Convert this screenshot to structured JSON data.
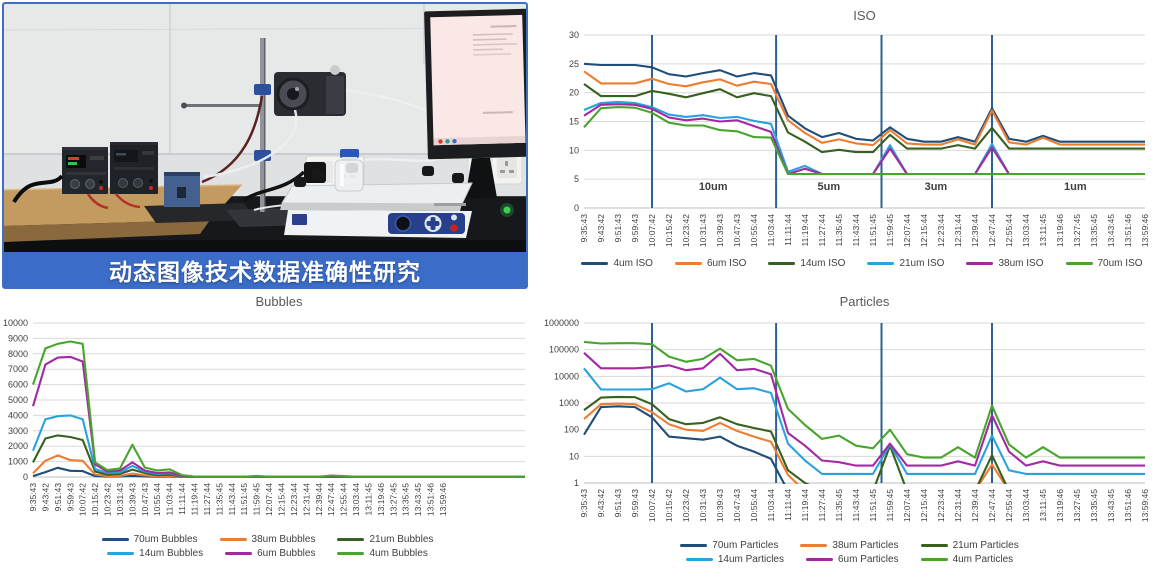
{
  "photo": {
    "caption": "动态图像技术数据准确性研究",
    "banner_color": "#3a6cc8",
    "scene_objects": [
      "wall-panels",
      "wooden-table",
      "power-supply-left",
      "power-supply-right",
      "retort-stand",
      "peristaltic-pump",
      "flow-cell-box",
      "tubing",
      "power-outlet-left",
      "power-outlet-right",
      "glass-bottle",
      "analyzer-shaker",
      "shaker-keypad",
      "monitor",
      "lab-bench",
      "status-led"
    ]
  },
  "colors": {
    "divider": "#2e6191",
    "grid": "#d9d9d9",
    "axis": "#bfbfbf",
    "tick_text": "#404040",
    "title_text": "#595959"
  },
  "chart_data": {
    "x_labels": [
      "9:35:43",
      "9:43:42",
      "9:51:43",
      "9:59:43",
      "10:07:42",
      "10:15:42",
      "10:23:42",
      "10:31:43",
      "10:39:43",
      "10:47:43",
      "10:55:44",
      "11:03:44",
      "11:11:44",
      "11:19:44",
      "11:27:44",
      "11:35:45",
      "11:43:44",
      "11:51:45",
      "11:59:45",
      "12:07:44",
      "12:15:44",
      "12:23:44",
      "12:31:44",
      "12:39:44",
      "12:47:44",
      "12:55:44",
      "13:03:44",
      "13:11:45",
      "13:19:46",
      "13:27:45",
      "13:35:45",
      "13:43:45",
      "13:51:46",
      "13:59:46"
    ],
    "charts": [
      {
        "id": "iso",
        "type": "line",
        "title": "ISO",
        "y_scale": "linear",
        "ylim": [
          0,
          30
        ],
        "yticks": [
          0,
          5,
          10,
          15,
          20,
          25,
          30
        ],
        "grid": true,
        "legend_position": "bottom",
        "dividers_at_x": [
          4,
          11.3,
          17.5,
          24
        ],
        "region_labels": [
          {
            "text": "10um",
            "x": 7.6
          },
          {
            "text": "5um",
            "x": 14.4
          },
          {
            "text": "3um",
            "x": 20.7
          },
          {
            "text": "1um",
            "x": 28.9
          }
        ],
        "legend_rows": [
          [
            "4um ISO",
            "6um ISO",
            "14um ISO",
            "21um ISO",
            "38um ISO",
            "70um ISO"
          ]
        ],
        "series": [
          {
            "name": "4um ISO",
            "color": "#1f4e79",
            "values": [
              25,
              24.8,
              24.8,
              24.8,
              24.4,
              23.2,
              22.8,
              23.4,
              23.9,
              22.8,
              23.4,
              23,
              16,
              13.8,
              12.3,
              13,
              12,
              11.7,
              14,
              12,
              11.5,
              11.5,
              12.3,
              11.5,
              17.3,
              12,
              11.5,
              12.5,
              11.5,
              11.5,
              11.5,
              11.5,
              11.5,
              11.5
            ]
          },
          {
            "name": "6um ISO",
            "color": "#ed7d31",
            "values": [
              23.7,
              21.6,
              21.6,
              21.6,
              22.4,
              21.5,
              21.1,
              21.8,
              22.3,
              21.2,
              21.9,
              21.5,
              15.2,
              13,
              11.3,
              11.9,
              11.2,
              10.9,
              13.5,
              11.2,
              11,
              11,
              11.9,
              11,
              16.9,
              11.4,
              11,
              12.2,
              11,
              11,
              11,
              11,
              11,
              11
            ]
          },
          {
            "name": "14um ISO",
            "color": "#38601f",
            "values": [
              21.5,
              19.4,
              19.4,
              19.4,
              20.3,
              19.8,
              19.2,
              19.9,
              20.6,
              19.2,
              19.9,
              19.4,
              13.1,
              11.5,
              9.7,
              10.1,
              9.7,
              9.7,
              12.7,
              10.3,
              10.3,
              10.3,
              10.9,
              10.3,
              13.9,
              10.3,
              10.3,
              10.3,
              10.3,
              10.3,
              10.3,
              10.3,
              10.3,
              10.3
            ]
          },
          {
            "name": "21um ISO",
            "color": "#29a3dd",
            "values": [
              17,
              18.2,
              18.4,
              18.2,
              17.5,
              16.2,
              15.8,
              16.1,
              15.6,
              15.8,
              15.1,
              14.6,
              6.3,
              7.3,
              5.9,
              5.9,
              5.9,
              5.9,
              10.9,
              5.9,
              5.9,
              5.9,
              5.9,
              5.9,
              11.1,
              5.9,
              5.9,
              5.9,
              5.9,
              5.9,
              5.9,
              5.9,
              5.9,
              5.9
            ]
          },
          {
            "name": "38um ISO",
            "color": "#a428a4",
            "values": [
              16,
              17.9,
              18,
              17.9,
              17.2,
              15.7,
              15.2,
              15.5,
              15,
              15.2,
              14.2,
              13.2,
              5.9,
              6.8,
              5.9,
              5.9,
              5.9,
              5.9,
              10.3,
              5.9,
              5.9,
              5.9,
              5.9,
              5.9,
              10.5,
              5.9,
              5.9,
              5.9,
              5.9,
              5.9,
              5.9,
              5.9,
              5.9,
              5.9
            ]
          },
          {
            "name": "70um ISO",
            "color": "#48a52c",
            "values": [
              14,
              17.3,
              17.5,
              17.4,
              16.5,
              14.8,
              14.3,
              14.3,
              13.5,
              13.3,
              12.3,
              12.2,
              5.9,
              5.9,
              5.9,
              5.9,
              5.9,
              5.9,
              5.9,
              5.9,
              5.9,
              5.9,
              5.9,
              5.9,
              5.9,
              5.9,
              5.9,
              5.9,
              5.9,
              5.9,
              5.9,
              5.9,
              5.9,
              5.9
            ]
          }
        ]
      },
      {
        "id": "bubbles",
        "type": "line",
        "title": "Bubbles",
        "y_scale": "linear",
        "ylim": [
          0,
          10000
        ],
        "yticks": [
          0,
          1000,
          2000,
          3000,
          4000,
          5000,
          6000,
          7000,
          8000,
          9000,
          10000
        ],
        "grid": true,
        "legend_position": "bottom",
        "dividers_at_x": [],
        "region_labels": [],
        "legend_rows": [
          [
            "70um Bubbles",
            "38um Bubbles",
            "21um Bubbles"
          ],
          [
            "14um Bubbles",
            "6um Bubbles",
            "4um Bubbles"
          ]
        ],
        "series": [
          {
            "name": "70um Bubbles",
            "color": "#1f4e79",
            "values": [
              60,
              320,
              600,
              400,
              380,
              60,
              25,
              30,
              70,
              35,
              18,
              20,
              5,
              2,
              0,
              0,
              0,
              0,
              3,
              0,
              0,
              0,
              0,
              0,
              4,
              2,
              0,
              0,
              0,
              0,
              0,
              0,
              0,
              0
            ]
          },
          {
            "name": "38um Bubbles",
            "color": "#ed7d31",
            "values": [
              250,
              1050,
              1400,
              1100,
              1050,
              160,
              60,
              80,
              220,
              110,
              55,
              60,
              15,
              5,
              2,
              2,
              2,
              2,
              8,
              2,
              2,
              2,
              2,
              2,
              10,
              5,
              2,
              2,
              2,
              2,
              2,
              2,
              2,
              2
            ]
          },
          {
            "name": "21um Bubbles",
            "color": "#38601f",
            "values": [
              950,
              2500,
              2700,
              2600,
              2400,
              360,
              150,
              200,
              480,
              260,
              120,
              150,
              35,
              10,
              5,
              5,
              5,
              5,
              15,
              5,
              5,
              5,
              5,
              5,
              18,
              8,
              5,
              5,
              5,
              5,
              5,
              5,
              5,
              5
            ]
          },
          {
            "name": "14um Bubbles",
            "color": "#29a3dd",
            "values": [
              1700,
              3750,
              3950,
              4000,
              3750,
              520,
              260,
              300,
              720,
              360,
              200,
              250,
              55,
              15,
              8,
              8,
              8,
              8,
              25,
              8,
              8,
              8,
              8,
              8,
              30,
              12,
              8,
              8,
              8,
              8,
              8,
              8,
              8,
              8
            ]
          },
          {
            "name": "6um Bubbles",
            "color": "#a428a4",
            "values": [
              4600,
              7300,
              7750,
              7800,
              7500,
              820,
              350,
              420,
              950,
              420,
              260,
              300,
              70,
              18,
              10,
              10,
              10,
              10,
              30,
              10,
              10,
              10,
              10,
              10,
              40,
              18,
              10,
              10,
              10,
              10,
              10,
              10,
              10,
              10
            ]
          },
          {
            "name": "4um Bubbles",
            "color": "#48a52c",
            "values": [
              6000,
              8350,
              8650,
              8800,
              8650,
              950,
              450,
              560,
              2100,
              620,
              420,
              500,
              120,
              35,
              20,
              20,
              20,
              20,
              70,
              20,
              20,
              20,
              20,
              20,
              100,
              60,
              20,
              20,
              20,
              20,
              20,
              20,
              20,
              20
            ]
          }
        ]
      },
      {
        "id": "particles",
        "type": "line",
        "title": "Particles",
        "y_scale": "log",
        "ylim": [
          1,
          1000000
        ],
        "yticks": [
          1,
          10,
          100,
          1000,
          10000,
          100000,
          1000000
        ],
        "grid": true,
        "legend_position": "bottom",
        "dividers_at_x": [
          4,
          11.3,
          17.5,
          24
        ],
        "region_labels": [],
        "legend_rows": [
          [
            "70um Particles",
            "38um Particles",
            "21um Particles"
          ],
          [
            "14um Particles",
            "6um Particles",
            "4um Particles"
          ]
        ],
        "series": [
          {
            "name": "70um Particles",
            "color": "#1f4e79",
            "values": [
              65,
              700,
              750,
              700,
              290,
              55,
              48,
              42,
              55,
              25,
              15,
              8,
              0.5,
              0.5,
              0.5,
              0.5,
              0.5,
              0.5,
              0.5,
              0.5,
              0.5,
              0.5,
              0.5,
              0.5,
              0.5,
              0.5,
              0.5,
              0.5,
              0.5,
              0.5,
              0.5,
              0.5,
              0.5,
              0.5
            ]
          },
          {
            "name": "38um Particles",
            "color": "#ed7d31",
            "values": [
              250,
              900,
              950,
              900,
              450,
              160,
              100,
              90,
              180,
              90,
              55,
              35,
              2,
              0.5,
              0.5,
              0.5,
              0.5,
              0.5,
              0.5,
              0.5,
              0.5,
              0.5,
              0.5,
              0.5,
              5,
              0.5,
              0.5,
              0.5,
              0.5,
              0.5,
              0.5,
              0.5,
              0.5,
              0.5
            ]
          },
          {
            "name": "21um Particles",
            "color": "#38601f",
            "values": [
              540,
              1600,
              1700,
              1650,
              900,
              250,
              160,
              180,
              290,
              160,
              115,
              85,
              3,
              1,
              0.5,
              0.5,
              0.5,
              0.5,
              25,
              0.5,
              0.5,
              0.5,
              0.5,
              0.5,
              11,
              0.5,
              0.5,
              0.5,
              0.5,
              0.5,
              0.5,
              0.5,
              0.5,
              0.5
            ]
          },
          {
            "name": "14um Particles",
            "color": "#29a3dd",
            "values": [
              20000,
              3200,
              3200,
              3200,
              3300,
              5500,
              2700,
              3300,
              9000,
              3300,
              3600,
              2400,
              30,
              7,
              2.2,
              2.2,
              2.2,
              2.2,
              28,
              2.2,
              2.2,
              2.2,
              2.2,
              2.2,
              60,
              3,
              2.2,
              2.2,
              2.2,
              2.2,
              2.2,
              2.2,
              2.2,
              2.2
            ]
          },
          {
            "name": "6um Particles",
            "color": "#a428a4",
            "values": [
              76000,
              20000,
              20000,
              20000,
              22000,
              26000,
              17000,
              20000,
              70000,
              17000,
              19000,
              12000,
              75,
              25,
              7,
              6,
              4.5,
              4.5,
              30,
              4.5,
              4.5,
              4.5,
              6.5,
              4.5,
              350,
              15,
              4.5,
              6.5,
              4.5,
              4.5,
              4.5,
              4.5,
              4.5,
              4.5
            ]
          },
          {
            "name": "4um Particles",
            "color": "#48a52c",
            "values": [
              195000,
              170000,
              175000,
              175000,
              160000,
              55000,
              35000,
              45000,
              110000,
              40000,
              45000,
              25000,
              600,
              150,
              45,
              60,
              25,
              20,
              100,
              12,
              9,
              9,
              22,
              9,
              800,
              28,
              9,
              22,
              9,
              9,
              9,
              9,
              9,
              9
            ]
          }
        ]
      }
    ]
  }
}
